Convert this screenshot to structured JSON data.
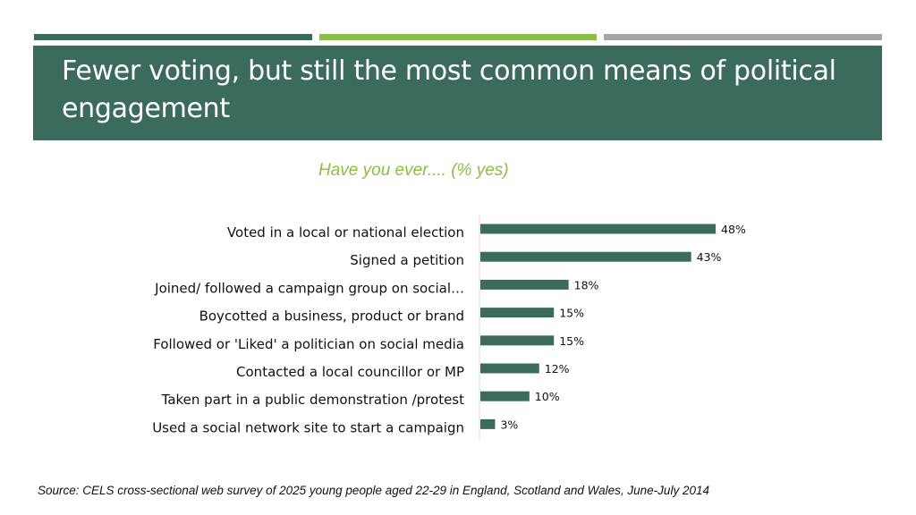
{
  "colors": {
    "accent_dark": "#3a6b5c",
    "accent_green": "#8cbd45",
    "accent_gray": "#a6a6a6",
    "subtitle_green": "#8cbd45",
    "bar": "#3a6b5c"
  },
  "slide": {
    "title": "Fewer voting, but still the most common means of political engagement",
    "subtitle": "Have you ever.... (% yes)",
    "source": "Source: CELS cross-sectional web survey of 2025 young people aged 22-29 in England, Scotland and Wales, June-July 2014"
  },
  "chart_data": {
    "type": "bar",
    "orientation": "horizontal",
    "title": "Have you ever.... (% yes)",
    "categories": [
      "Voted in a local or national election",
      "Signed a petition",
      "Joined/ followed a campaign group on social…",
      "Boycotted a business, product or brand",
      "Followed or 'Liked' a politician on social media",
      "Contacted a local councillor or MP",
      "Taken part in a public demonstration /protest",
      "Used a social network site to start a campaign"
    ],
    "values": [
      48,
      43,
      18,
      15,
      15,
      12,
      10,
      3
    ],
    "value_labels": [
      "48%",
      "43%",
      "18%",
      "15%",
      "15%",
      "12%",
      "10%",
      "3%"
    ],
    "xlim": [
      0,
      50
    ],
    "grid": false,
    "legend": "none"
  }
}
